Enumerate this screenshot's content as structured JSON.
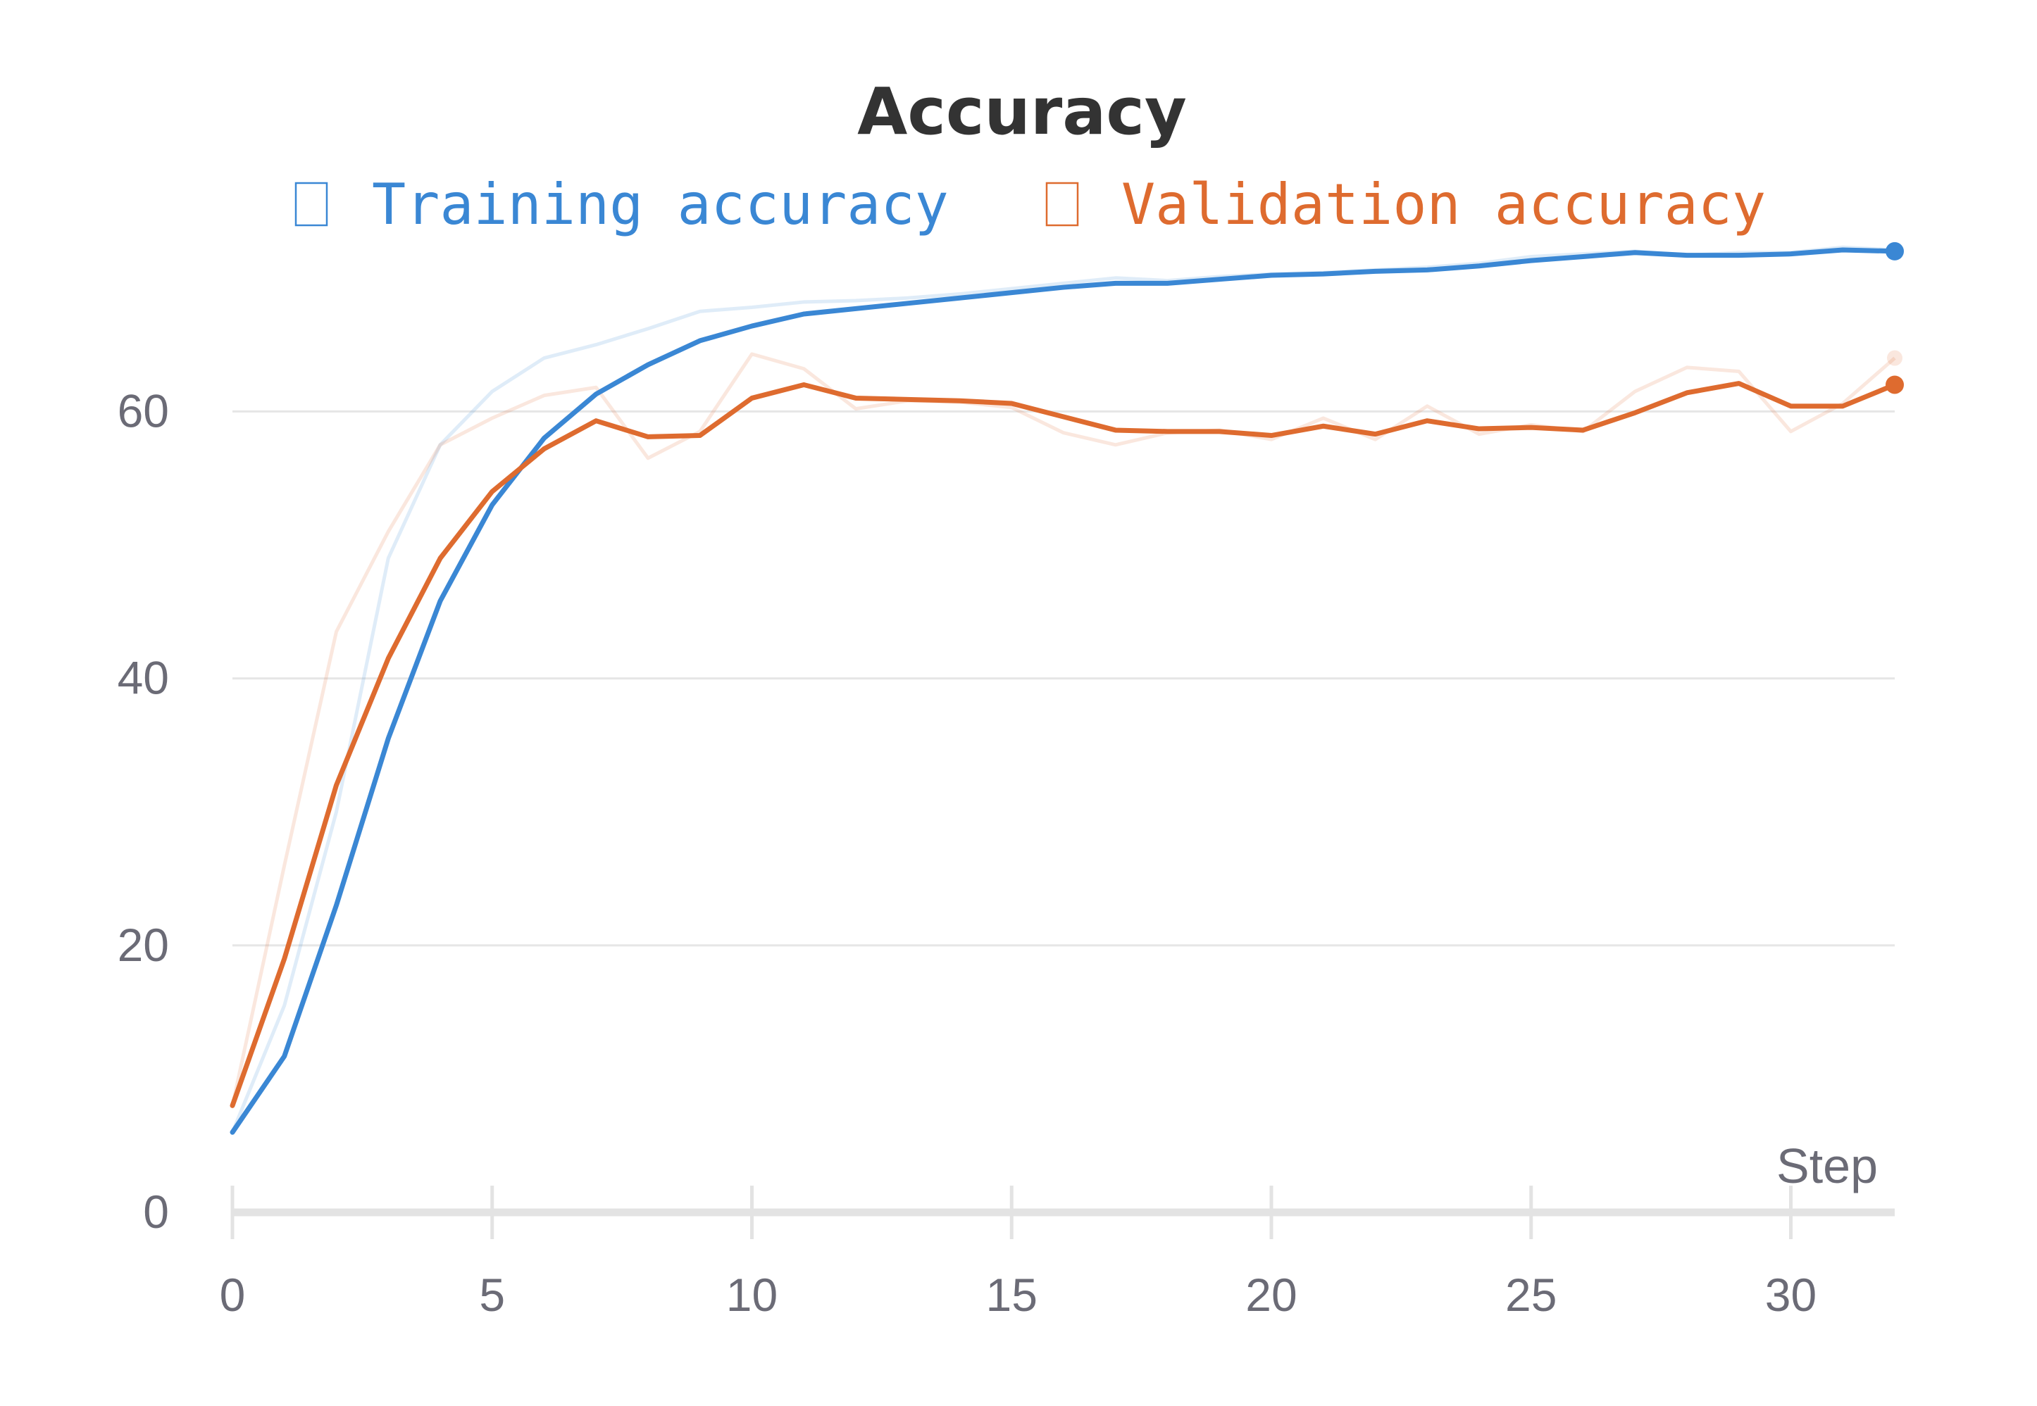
{
  "chart_data": {
    "type": "line",
    "title": "Accuracy",
    "xlabel": "Step",
    "ylabel": "",
    "xlim": [
      0,
      32
    ],
    "ylim": [
      0,
      75
    ],
    "x_ticks": [
      0,
      5,
      10,
      15,
      20,
      25,
      30
    ],
    "y_ticks": [
      0,
      20,
      40,
      60
    ],
    "grid": "horizontal",
    "legend": "top-center",
    "x": [
      0,
      1,
      2,
      3,
      4,
      5,
      6,
      7,
      8,
      9,
      10,
      11,
      12,
      13,
      14,
      15,
      16,
      17,
      18,
      19,
      20,
      21,
      22,
      23,
      24,
      25,
      26,
      27,
      28,
      29,
      30,
      31,
      32
    ],
    "series": [
      {
        "name": "Training accuracy",
        "color": "#3a87d4",
        "values": [
          6.0,
          11.7,
          23.0,
          35.5,
          45.8,
          53.0,
          58.0,
          61.3,
          63.5,
          65.3,
          66.4,
          67.3,
          67.7,
          68.1,
          68.5,
          68.9,
          69.3,
          69.6,
          69.6,
          69.9,
          70.2,
          70.3,
          70.5,
          70.6,
          70.9,
          71.3,
          71.6,
          71.9,
          71.7,
          71.7,
          71.8,
          72.1,
          72.0
        ],
        "raw_values": [
          6.0,
          15.5,
          30.0,
          49.0,
          57.5,
          61.5,
          64.0,
          65.0,
          66.2,
          67.5,
          67.8,
          68.2,
          68.3,
          68.5,
          68.8,
          69.2,
          69.6,
          70.0,
          69.8,
          70.1,
          70.3,
          70.4,
          70.6,
          70.8,
          71.1,
          71.6,
          71.8,
          72.0,
          71.7,
          71.9,
          71.9,
          72.3,
          72.1
        ]
      },
      {
        "name": "Validation accuracy",
        "color": "#de6b2f",
        "values": [
          8.0,
          19.0,
          32.0,
          41.5,
          49.0,
          54.0,
          57.2,
          59.3,
          58.1,
          58.2,
          61.0,
          62.0,
          61.0,
          60.9,
          60.8,
          60.6,
          59.6,
          58.6,
          58.5,
          58.5,
          58.2,
          58.9,
          58.3,
          59.3,
          58.7,
          58.8,
          58.6,
          59.9,
          61.4,
          62.1,
          60.4,
          60.4,
          62.0
        ],
        "raw_values": [
          8.0,
          26.0,
          43.5,
          51.0,
          57.5,
          59.5,
          61.2,
          61.8,
          56.5,
          58.5,
          64.3,
          63.2,
          60.2,
          60.8,
          60.7,
          60.3,
          58.4,
          57.5,
          58.4,
          58.6,
          57.9,
          59.5,
          57.9,
          60.4,
          58.3,
          59.0,
          58.5,
          61.5,
          63.3,
          63.0,
          58.5,
          60.6,
          64.0
        ]
      }
    ]
  }
}
